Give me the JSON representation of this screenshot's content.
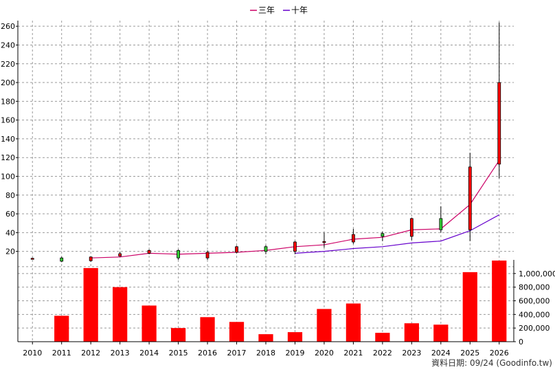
{
  "legend": [
    {
      "label": "三年",
      "color": "#cc0066"
    },
    {
      "label": "十年",
      "color": "#6600cc"
    }
  ],
  "footer_text": "資料日期: 09/24  (Goodinfo.tw)",
  "colors": {
    "up": "#ff0000",
    "down": "#33cc33",
    "volume": "#ff0000",
    "grid": "#999999",
    "axis": "#000000"
  },
  "chart_data": [
    {
      "type": "candlestick",
      "categories": [
        "2010",
        "2011",
        "2012",
        "2013",
        "2014",
        "2015",
        "2016",
        "2017",
        "2018",
        "2019",
        "2020",
        "2021",
        "2022",
        "2023",
        "2024",
        "2025",
        "2026"
      ],
      "y_ticks": [
        20,
        40,
        60,
        80,
        100,
        120,
        140,
        160,
        180,
        200,
        220,
        240,
        260
      ],
      "ylim": [
        8,
        266
      ],
      "grid": true,
      "candles": [
        {
          "x": "2010",
          "open": 12.5,
          "high": 13.2,
          "low": 12.0,
          "close": 12.6
        },
        {
          "x": "2011",
          "open": 13.0,
          "high": 14.2,
          "low": 8.5,
          "close": 9.5
        },
        {
          "x": "2012",
          "open": 10.0,
          "high": 14.5,
          "low": 9.0,
          "close": 14.0
        },
        {
          "x": "2013",
          "open": 15.0,
          "high": 19.5,
          "low": 14.5,
          "close": 17.5
        },
        {
          "x": "2014",
          "open": 18.0,
          "high": 22.0,
          "low": 17.0,
          "close": 21.0
        },
        {
          "x": "2015",
          "open": 21.0,
          "high": 22.0,
          "low": 11.0,
          "close": 13.0
        },
        {
          "x": "2016",
          "open": 13.0,
          "high": 21.0,
          "low": 11.0,
          "close": 19.0
        },
        {
          "x": "2017",
          "open": 19.0,
          "high": 26.0,
          "low": 18.0,
          "close": 25.0
        },
        {
          "x": "2018",
          "open": 25.0,
          "high": 26.5,
          "low": 17.0,
          "close": 20.0
        },
        {
          "x": "2019",
          "open": 20.0,
          "high": 31.0,
          "low": 17.0,
          "close": 30.0
        },
        {
          "x": "2020",
          "open": 30.0,
          "high": 40.0,
          "low": 24.0,
          "close": 30.5
        },
        {
          "x": "2021",
          "open": 30.0,
          "high": 44.0,
          "low": 28.0,
          "close": 38.0
        },
        {
          "x": "2022",
          "open": 39.0,
          "high": 41.0,
          "low": 31.0,
          "close": 36.0
        },
        {
          "x": "2023",
          "open": 36.0,
          "high": 56.0,
          "low": 32.0,
          "close": 55.0
        },
        {
          "x": "2024",
          "open": 55.0,
          "high": 68.0,
          "low": 40.0,
          "close": 43.0
        },
        {
          "x": "2025",
          "open": 43.0,
          "high": 125.0,
          "low": 31.0,
          "close": 110.0
        },
        {
          "x": "2026",
          "open": 113.0,
          "high": 264.0,
          "low": 98.0,
          "close": 200.0
        }
      ],
      "series": [
        {
          "name": "三年",
          "color": "#cc0066",
          "points": [
            [
              "2012",
              13
            ],
            [
              "2013",
              14
            ],
            [
              "2014",
              18
            ],
            [
              "2015",
              17
            ],
            [
              "2016",
              18
            ],
            [
              "2017",
              19
            ],
            [
              "2018",
              21
            ],
            [
              "2019",
              25
            ],
            [
              "2020",
              27
            ],
            [
              "2021",
              33
            ],
            [
              "2022",
              35
            ],
            [
              "2023",
              43
            ],
            [
              "2024",
              44
            ],
            [
              "2025",
              70
            ],
            [
              "2026",
              117
            ]
          ]
        },
        {
          "name": "十年",
          "color": "#6600cc",
          "points": [
            [
              "2019",
              18
            ],
            [
              "2020",
              20
            ],
            [
              "2021",
              23
            ],
            [
              "2022",
              25
            ],
            [
              "2023",
              29
            ],
            [
              "2024",
              31
            ],
            [
              "2025",
              42
            ],
            [
              "2026",
              59
            ]
          ]
        }
      ]
    },
    {
      "type": "bar",
      "categories": [
        "2010",
        "2011",
        "2012",
        "2013",
        "2014",
        "2015",
        "2016",
        "2017",
        "2018",
        "2019",
        "2020",
        "2021",
        "2022",
        "2023",
        "2024",
        "2025",
        "2026"
      ],
      "values": [
        5000,
        380000,
        1080000,
        800000,
        530000,
        200000,
        360000,
        290000,
        110000,
        140000,
        480000,
        560000,
        130000,
        270000,
        250000,
        1020000,
        1190000
      ],
      "y_ticks": [
        0,
        200000,
        400000,
        600000,
        800000,
        1000000
      ],
      "y_tick_labels": [
        "0",
        "200,000",
        "400,000",
        "600,000",
        "800,000",
        "1,000,000"
      ],
      "ylim": [
        0,
        1200000
      ],
      "grid": true
    }
  ]
}
